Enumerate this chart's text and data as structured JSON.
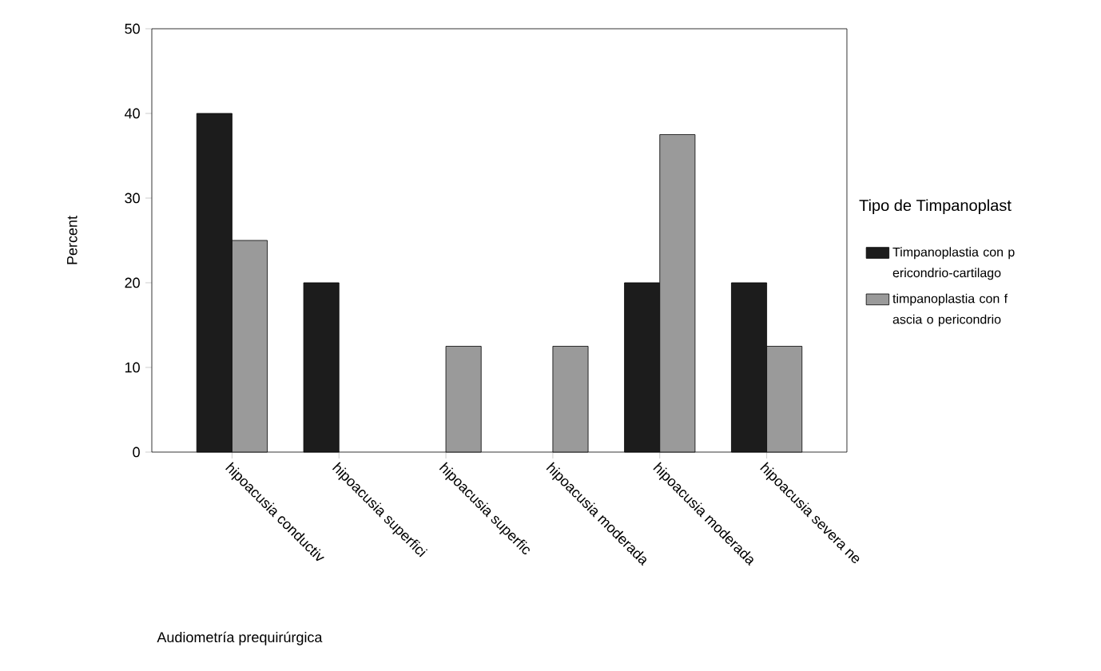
{
  "chart_data": {
    "type": "bar",
    "xlabel": "Audiometría prequirúrgica",
    "ylabel": "Percent",
    "legend_title": "Tipo de Timpanoplast",
    "categories": [
      "hipoacusia conductiv",
      "hipoacusia superfici",
      "hipoacusia  superfic",
      "hipoacusia moderada",
      "hipoacusia moderada",
      "hipoacusia severa ne"
    ],
    "series": [
      {
        "name": "Timpanoplastia con p ericondrio-cartilago",
        "color": "#1c1c1c",
        "values": [
          40,
          20,
          null,
          null,
          20,
          20
        ]
      },
      {
        "name": "timpanoplastia con f ascia o pericondrio",
        "color": "#9a9a9a",
        "values": [
          25,
          null,
          12.5,
          12.5,
          37.5,
          12.5
        ]
      }
    ],
    "ylim": [
      0,
      50
    ],
    "yticks": [
      0,
      10,
      20,
      30,
      40,
      50
    ],
    "legend": "right"
  }
}
